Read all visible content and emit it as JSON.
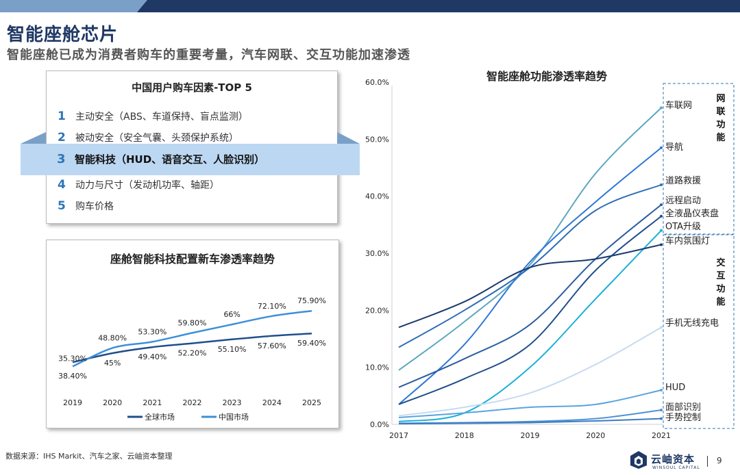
{
  "header": {
    "title": "智能座舱芯片",
    "subtitle": "智能座舱已成为消费者购车的重要考量，汽车网联、交互功能加速渗透"
  },
  "top5": {
    "title": "中国用户购车因素-TOP 5",
    "items": [
      {
        "num": "1",
        "text": "主动安全（ABS、车道保持、盲点监测）"
      },
      {
        "num": "2",
        "text": "被动安全（安全气囊、头颈保护系统）"
      },
      {
        "num": "3",
        "text": "智能科技（HUD、语音交互、人脸识别）"
      },
      {
        "num": "4",
        "text": "动力与尺寸（发动机功率、轴距）"
      },
      {
        "num": "5",
        "text": "购车价格"
      }
    ]
  },
  "chart_data": [
    {
      "type": "line",
      "title": "座舱智能科技配置新车渗透率趋势",
      "x": [
        "2019",
        "2020",
        "2021",
        "2022",
        "2023",
        "2024",
        "2025"
      ],
      "ylim": [
        20,
        100
      ],
      "series": [
        {
          "name": "全球市场",
          "values": [
            38.4,
            45.0,
            49.4,
            52.2,
            55.1,
            57.6,
            59.4
          ],
          "labels": [
            "38.40%",
            "45%",
            "49.40%",
            "52.20%",
            "55.10%",
            "57.60%",
            "59.40%"
          ],
          "color": "#1f4e8c"
        },
        {
          "name": "中国市场",
          "values": [
            35.3,
            48.8,
            53.3,
            59.8,
            66.0,
            72.1,
            75.9
          ],
          "labels": [
            "35.30%",
            "48.80%",
            "53.30%",
            "59.80%",
            "66%",
            "72.10%",
            "75.90%"
          ],
          "color": "#3d8fd9"
        }
      ]
    },
    {
      "type": "line",
      "title": "智能座舱功能渗透率趋势",
      "x": [
        "2017",
        "2018",
        "2019",
        "2020",
        "2021"
      ],
      "ylim": [
        0,
        60
      ],
      "y_ticks": [
        "0.0%",
        "10.0%",
        "20.0%",
        "30.0%",
        "40.0%",
        "50.0%",
        "60.0%"
      ],
      "group_labels": [
        "网联功能",
        "交互功能"
      ],
      "series": [
        {
          "name": "车联网",
          "values": [
            9.5,
            18.0,
            28.0,
            44.0,
            55.5
          ],
          "color": "#5ba7bf"
        },
        {
          "name": "导航",
          "values": [
            3.5,
            14.0,
            28.5,
            39.0,
            48.5
          ],
          "color": "#2e75d6"
        },
        {
          "name": "道路救援",
          "values": [
            13.5,
            20.0,
            27.5,
            37.5,
            42.0
          ],
          "color": "#2e6db4"
        },
        {
          "name": "远程启动",
          "values": [
            6.5,
            11.5,
            17.5,
            29.0,
            38.5
          ],
          "color": "#2a5d9f"
        },
        {
          "name": "全液晶仪表盘",
          "values": [
            3.5,
            8.0,
            14.0,
            27.0,
            36.5
          ],
          "color": "#1f4e8c"
        },
        {
          "name": "OTA升级",
          "values": [
            0.5,
            2.0,
            10.0,
            22.0,
            34.0
          ],
          "color": "#19b0d6"
        },
        {
          "name": "车内氛围灯",
          "values": [
            17.0,
            21.5,
            27.5,
            29.0,
            31.5
          ],
          "color": "#1a3a6c"
        },
        {
          "name": "手机无线充电",
          "values": [
            1.5,
            3.0,
            5.5,
            10.5,
            17.0
          ],
          "color": "#c5daf0"
        },
        {
          "name": "HUD",
          "values": [
            1.2,
            2.0,
            3.0,
            3.5,
            6.0
          ],
          "color": "#5aa3e0"
        },
        {
          "name": "面部识别",
          "values": [
            0.2,
            0.3,
            0.5,
            1.0,
            2.5
          ],
          "color": "#4f92d4"
        },
        {
          "name": "手势控制",
          "values": [
            0.1,
            0.2,
            0.3,
            0.6,
            1.0
          ],
          "color": "#3a7cc2"
        }
      ]
    }
  ],
  "footer": {
    "source": "数据来源：IHS Markit、汽车之家、云岫资本整理",
    "logo_text": "云岫资本",
    "logo_sub": "WINSOUL CAPITAL",
    "page": "9"
  },
  "colors": {
    "brand": "#1f3864",
    "accent": "#2e75b6",
    "highlight": "#bcd7f2"
  }
}
